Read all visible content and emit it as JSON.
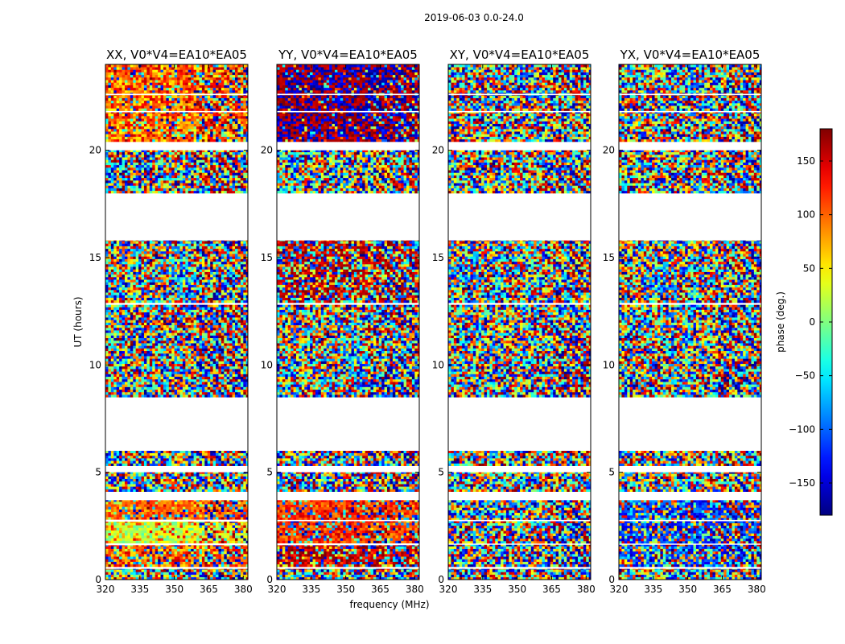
{
  "chart_data": {
    "type": "heatmap",
    "suptitle": "2019-06-03 0.0-24.0",
    "xlabel": "frequency (MHz)",
    "ylabel": "UT (hours)",
    "xlim": [
      320,
      382
    ],
    "ylim": [
      0,
      24
    ],
    "xticks": [
      320,
      335,
      350,
      365,
      380
    ],
    "yticks": [
      0,
      5,
      10,
      15,
      20
    ],
    "panels": [
      {
        "title": "XX, V0*V4=EA10*EA05",
        "rfi_start_mhz": 359,
        "bands": [
          {
            "t0": 0.0,
            "t1": 0.5,
            "mode": "noise"
          },
          {
            "t0": 0.6,
            "t1": 1.6,
            "mode": "noise_warm"
          },
          {
            "t0": 1.7,
            "t1": 2.7,
            "mode": "mixed_greenyellow"
          },
          {
            "t0": 2.8,
            "t1": 3.7,
            "mode": "noise_orange"
          },
          {
            "t0": 4.1,
            "t1": 5.0,
            "mode": "noise"
          },
          {
            "t0": 5.3,
            "t1": 6.0,
            "mode": "noise"
          },
          {
            "t0": 8.5,
            "t1": 12.8,
            "mode": "noise"
          },
          {
            "t0": 12.9,
            "t1": 15.8,
            "mode": "noise"
          },
          {
            "t0": 18.0,
            "t1": 20.0,
            "mode": "noise"
          },
          {
            "t0": 20.4,
            "t1": 24.0,
            "mode": "warm_upper"
          }
        ]
      },
      {
        "title": "YY, V0*V4=EA10*EA05",
        "rfi_start_mhz": 359,
        "bands": [
          {
            "t0": 0.0,
            "t1": 0.5,
            "mode": "noise"
          },
          {
            "t0": 0.6,
            "t1": 1.6,
            "mode": "red_noise"
          },
          {
            "t0": 1.7,
            "t1": 3.7,
            "mode": "red_orange"
          },
          {
            "t0": 4.1,
            "t1": 5.0,
            "mode": "noise"
          },
          {
            "t0": 5.3,
            "t1": 6.0,
            "mode": "noise"
          },
          {
            "t0": 8.5,
            "t1": 12.8,
            "mode": "noise"
          },
          {
            "t0": 12.9,
            "t1": 15.8,
            "mode": "noise_red"
          },
          {
            "t0": 18.0,
            "t1": 20.0,
            "mode": "noise"
          },
          {
            "t0": 20.4,
            "t1": 24.0,
            "mode": "red_blue"
          }
        ]
      },
      {
        "title": "XY, V0*V4=EA10*EA05",
        "rfi_start_mhz": 362,
        "bands": [
          {
            "t0": 0.0,
            "t1": 0.5,
            "mode": "noise"
          },
          {
            "t0": 0.6,
            "t1": 3.7,
            "mode": "noise"
          },
          {
            "t0": 4.1,
            "t1": 5.0,
            "mode": "noise"
          },
          {
            "t0": 5.3,
            "t1": 6.0,
            "mode": "noise"
          },
          {
            "t0": 8.5,
            "t1": 12.8,
            "mode": "noise"
          },
          {
            "t0": 12.9,
            "t1": 15.8,
            "mode": "noise"
          },
          {
            "t0": 18.0,
            "t1": 20.0,
            "mode": "noise"
          },
          {
            "t0": 20.4,
            "t1": 24.0,
            "mode": "noise"
          }
        ]
      },
      {
        "title": "YX, V0*V4=EA10*EA05",
        "rfi_start_mhz": 362,
        "bands": [
          {
            "t0": 0.0,
            "t1": 0.5,
            "mode": "noise"
          },
          {
            "t0": 0.6,
            "t1": 3.7,
            "mode": "noise_blue"
          },
          {
            "t0": 4.1,
            "t1": 5.0,
            "mode": "noise"
          },
          {
            "t0": 5.3,
            "t1": 6.0,
            "mode": "noise"
          },
          {
            "t0": 8.5,
            "t1": 12.8,
            "mode": "noise"
          },
          {
            "t0": 12.9,
            "t1": 15.8,
            "mode": "noise"
          },
          {
            "t0": 18.0,
            "t1": 20.0,
            "mode": "noise"
          },
          {
            "t0": 20.4,
            "t1": 24.0,
            "mode": "noise"
          }
        ]
      }
    ],
    "flag_gaps_ut": [
      0.55,
      1.65,
      2.75,
      3.9,
      5.15,
      7.0,
      12.85,
      16.9,
      20.2,
      21.8,
      22.6
    ],
    "colorbar": {
      "label": "phase (deg.)",
      "range": [
        -180,
        180
      ],
      "ticks": [
        -150,
        -100,
        -50,
        0,
        50,
        100,
        150
      ],
      "colormap": "jet"
    }
  }
}
